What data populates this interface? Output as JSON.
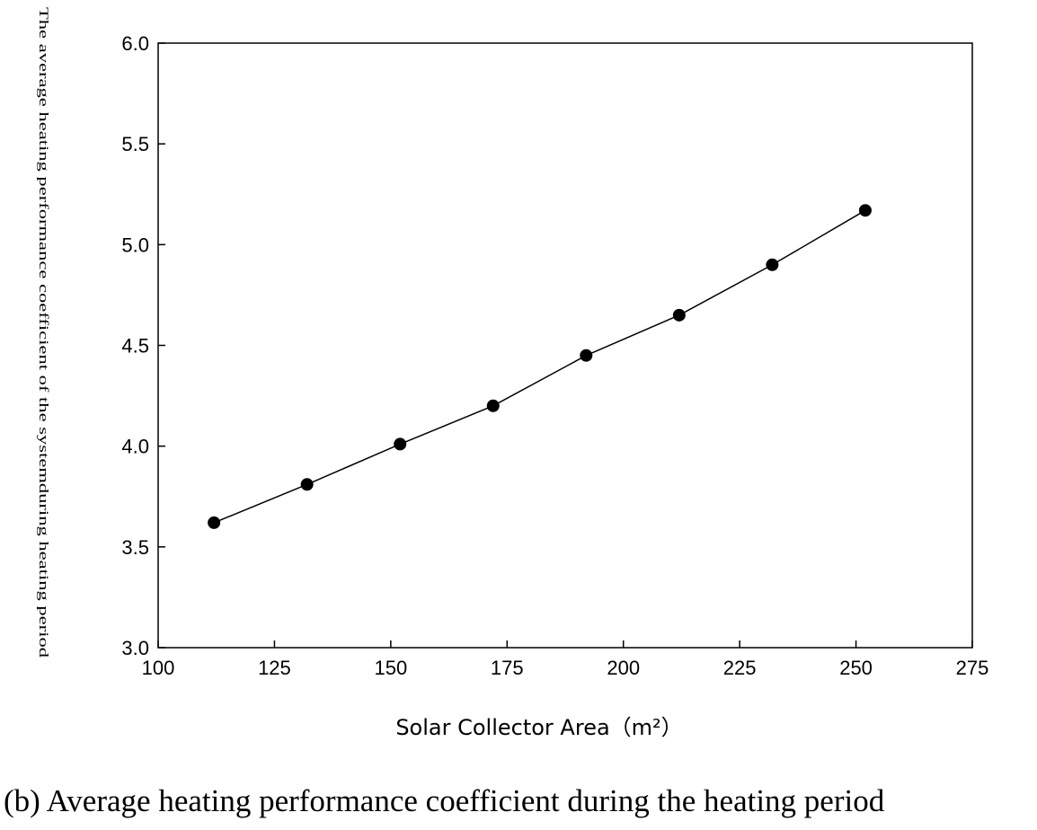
{
  "chart_data": {
    "type": "line",
    "xlabel": "Solar Collector Area（m²）",
    "ylabel": "The average heating performance coefficient of the systemduring heating period",
    "xlim": [
      100,
      275
    ],
    "ylim": [
      3.0,
      6.0
    ],
    "x_ticks": [
      "100",
      "125",
      "150",
      "175",
      "200",
      "225",
      "250",
      "275"
    ],
    "y_ticks": [
      "3.0",
      "3.5",
      "4.0",
      "4.5",
      "5.0",
      "5.5",
      "6.0"
    ],
    "grid": false,
    "legend": "none",
    "series": [
      {
        "x": [
          112,
          132,
          152,
          172,
          192,
          212,
          232,
          252
        ],
        "y": [
          3.62,
          3.81,
          4.01,
          4.2,
          4.45,
          4.65,
          4.9,
          5.17
        ],
        "marker": "circle",
        "color": "#000000"
      }
    ]
  },
  "caption": "(b) Average heating performance coefficient during the heating period"
}
